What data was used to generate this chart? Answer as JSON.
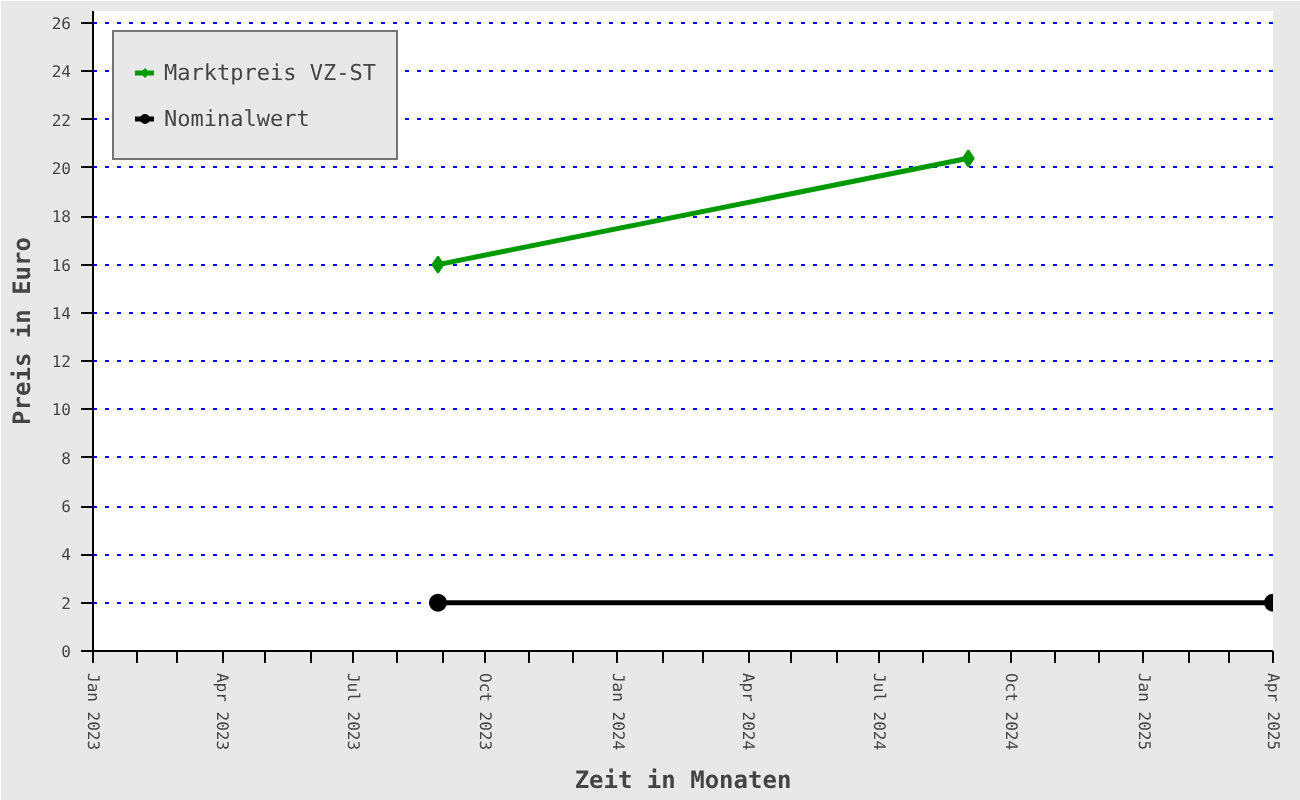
{
  "chart_data": {
    "type": "line",
    "xlabel": "Zeit in Monaten",
    "ylabel": "Preis in Euro",
    "xlim": [
      "2023-01-01",
      "2025-04-01"
    ],
    "ylim": [
      0,
      26.5
    ],
    "yticks": [
      0,
      2,
      4,
      6,
      8,
      10,
      12,
      14,
      16,
      18,
      20,
      22,
      24,
      26
    ],
    "xticks": [
      {
        "value": "2023-01",
        "label": "Jan 2023"
      },
      {
        "value": "2023-02",
        "label": null
      },
      {
        "value": "2023-03",
        "label": null
      },
      {
        "value": "2023-04",
        "label": "Apr 2023"
      },
      {
        "value": "2023-05",
        "label": null
      },
      {
        "value": "2023-06",
        "label": null
      },
      {
        "value": "2023-07",
        "label": "Jul 2023"
      },
      {
        "value": "2023-08",
        "label": null
      },
      {
        "value": "2023-09",
        "label": null
      },
      {
        "value": "2023-10",
        "label": "Oct 2023"
      },
      {
        "value": "2023-11",
        "label": null
      },
      {
        "value": "2023-12",
        "label": null
      },
      {
        "value": "2024-01",
        "label": "Jan 2024"
      },
      {
        "value": "2024-02",
        "label": null
      },
      {
        "value": "2024-03",
        "label": null
      },
      {
        "value": "2024-04",
        "label": "Apr 2024"
      },
      {
        "value": "2024-05",
        "label": null
      },
      {
        "value": "2024-06",
        "label": null
      },
      {
        "value": "2024-07",
        "label": "Jul 2024"
      },
      {
        "value": "2024-08",
        "label": null
      },
      {
        "value": "2024-09",
        "label": null
      },
      {
        "value": "2024-10",
        "label": "Oct 2024"
      },
      {
        "value": "2024-11",
        "label": null
      },
      {
        "value": "2024-12",
        "label": null
      },
      {
        "value": "2025-01",
        "label": "Jan 2025"
      },
      {
        "value": "2025-02",
        "label": null
      },
      {
        "value": "2025-03",
        "label": null
      },
      {
        "value": "2025-04",
        "label": "Apr 2025"
      }
    ],
    "grid": "y",
    "legend": "top left",
    "line_style": "solid",
    "series": [
      {
        "name": "Marktpreis VZ-ST",
        "color": "#009900",
        "marker": "diamond",
        "x": [
          "2023-08-29",
          "2024-09-01"
        ],
        "values": [
          16,
          20.4
        ]
      },
      {
        "name": "Nominalwert",
        "color": "#000000",
        "marker": "circle",
        "x": [
          "2023-08-29",
          "2025-04-01"
        ],
        "values": [
          2,
          2
        ]
      }
    ]
  }
}
